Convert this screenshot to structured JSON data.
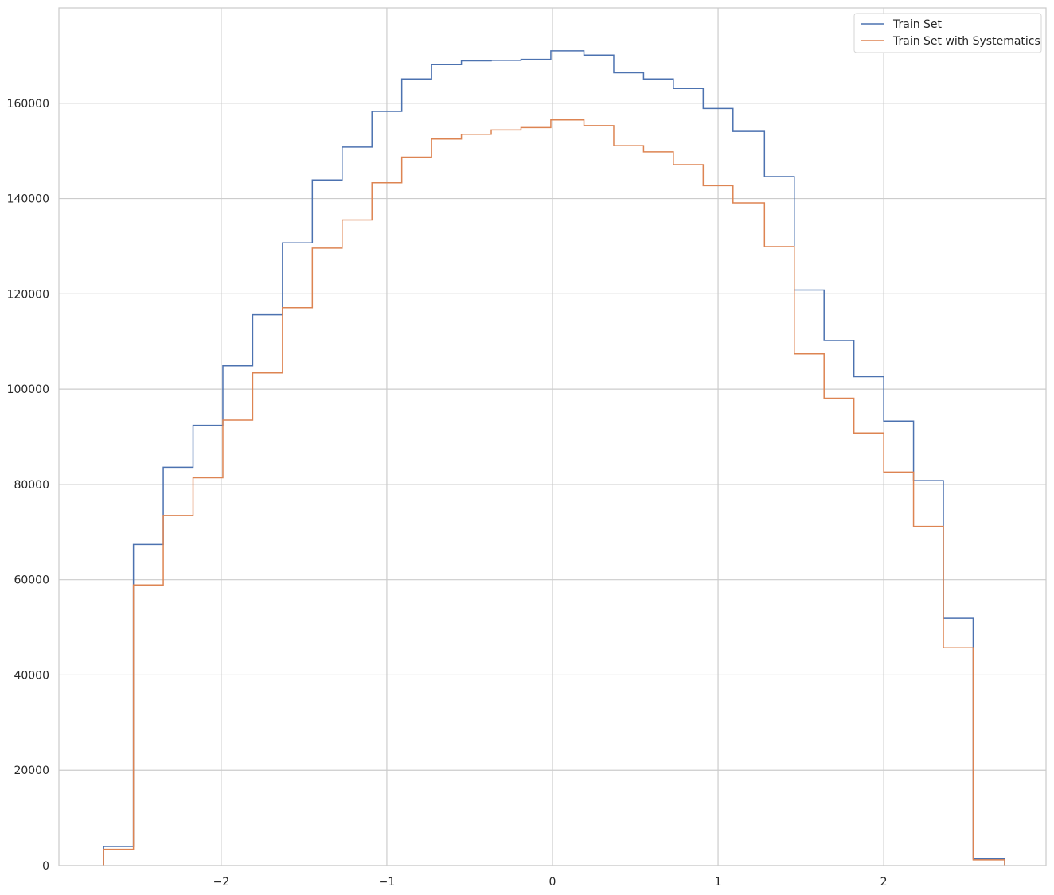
{
  "chart_data": {
    "type": "histogram-step",
    "title": "",
    "xlabel": "",
    "ylabel": "",
    "xlim": [
      -2.98,
      2.98
    ],
    "ylim": [
      0,
      180000
    ],
    "grid": true,
    "legend_position": "top-right",
    "x_ticks": [
      -2,
      -1,
      0,
      1,
      2
    ],
    "x_tick_labels": [
      "−2",
      "−1",
      "0",
      "1",
      "2"
    ],
    "y_ticks": [
      0,
      20000,
      40000,
      60000,
      80000,
      100000,
      120000,
      140000,
      160000
    ],
    "y_tick_labels": [
      "0",
      "20000",
      "40000",
      "60000",
      "80000",
      "100000",
      "120000",
      "140000",
      "160000"
    ],
    "bin_edges": [
      -2.71,
      -2.53,
      -2.35,
      -2.17,
      -1.99,
      -1.81,
      -1.63,
      -1.45,
      -1.27,
      -1.09,
      -0.91,
      -0.73,
      -0.55,
      -0.37,
      -0.19,
      -0.01,
      0.19,
      0.37,
      0.55,
      0.73,
      0.91,
      1.09,
      1.28,
      1.46,
      1.64,
      1.82,
      2.0,
      2.18,
      2.36,
      2.54,
      2.73
    ],
    "series": [
      {
        "name": "Train Set",
        "color": "#4c72b0",
        "values": [
          4000,
          67400,
          83600,
          92400,
          104900,
          115600,
          130700,
          143900,
          150800,
          158300,
          165100,
          168100,
          168900,
          169000,
          169200,
          171000,
          170100,
          166400,
          165100,
          163100,
          158900,
          154100,
          144600,
          120800,
          110200,
          102600,
          93300,
          80800,
          51900,
          1400
        ]
      },
      {
        "name": "Train Set with Systematics",
        "color": "#dd8452",
        "values": [
          3400,
          58900,
          73500,
          81400,
          93500,
          103400,
          117100,
          129600,
          135500,
          143300,
          148700,
          152500,
          153500,
          154400,
          154900,
          156500,
          155300,
          151100,
          149800,
          147100,
          142700,
          139100,
          129900,
          107400,
          98100,
          90800,
          82600,
          71200,
          45700,
          1200
        ]
      }
    ]
  }
}
